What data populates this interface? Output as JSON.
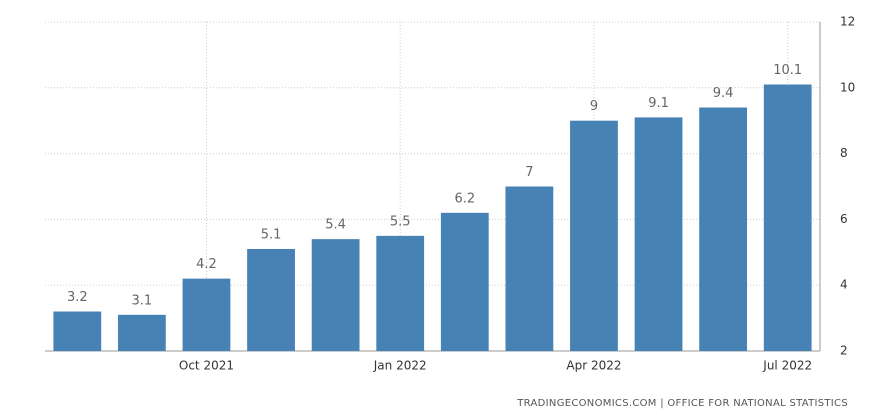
{
  "chart_data": {
    "type": "bar",
    "categories": [
      null,
      null,
      "Oct 2021",
      null,
      null,
      "Jan 2022",
      null,
      null,
      "Apr 2022",
      null,
      null,
      "Jul 2022"
    ],
    "values": [
      3.2,
      3.1,
      4.2,
      5.1,
      5.4,
      5.5,
      6.2,
      7,
      9,
      9.1,
      9.4,
      10.1
    ],
    "color": "#4682b4",
    "ylim": [
      2,
      12
    ],
    "yticks": [
      2,
      4,
      6,
      8,
      10,
      12
    ],
    "grid": true,
    "y_axis_side": "right",
    "source": "TRADINGECONOMICS.COM | OFFICE FOR NATIONAL STATISTICS"
  }
}
